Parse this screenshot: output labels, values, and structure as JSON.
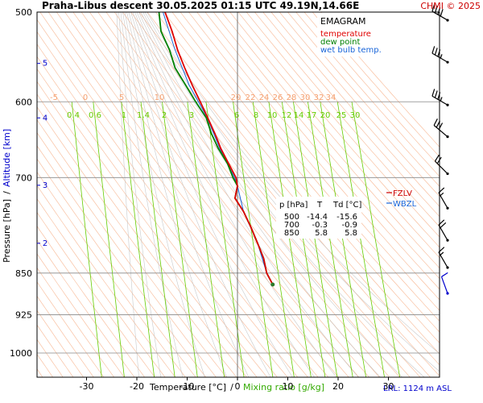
{
  "header": {
    "title": "Praha-Libus   descent   30.05.2025 01:15 UTC  49.19N,14.66E",
    "credit": "CHMI © 2025"
  },
  "legend": {
    "title": "EMAGRAM",
    "items": [
      {
        "label": "temperature",
        "color": "#e00000"
      },
      {
        "label": "dew point",
        "color": "#008000"
      },
      {
        "label": "wet bulb temp.",
        "color": "#1a66d9"
      }
    ],
    "level_labels": [
      {
        "label": "FZLV",
        "color": "#cc0000"
      },
      {
        "label": "WBZL",
        "color": "#1a66d9"
      }
    ]
  },
  "table": {
    "headers": [
      "p [hPa]",
      "T",
      "Td [°C]"
    ],
    "rows": [
      [
        "500",
        "-14.4",
        "-15.6"
      ],
      [
        "700",
        "-0.3",
        "-0.9"
      ],
      [
        "850",
        "5.8",
        "5.8"
      ]
    ]
  },
  "footer": {
    "xlabel_temp": "Temperature [°C]",
    "xlabel_sep": "/",
    "xlabel_mix": "Mixing ratio [g/kg]",
    "lrl": "LRL: 1124 m ASL"
  },
  "axis_titles": {
    "pressure": "Pressure [hPa]",
    "sep": "/",
    "altitude": "Altitude [km]"
  },
  "colors": {
    "temperature": "#e00000",
    "dewpoint": "#008000",
    "wetbulb": "#1a66d9",
    "mixing_ratio": "#66cc00",
    "dry_adiabat": "#f5a070",
    "moist_adiabat": "#bbbbbb",
    "isobar": "#888888",
    "wind_barb": "#000000",
    "wind_barb_low": "#0000cc",
    "altitude_label": "#0000cc"
  },
  "chart_data": {
    "type": "line",
    "title": "Praha-Libus   descent   30.05.2025 01:15 UTC  49.19N,14.66E",
    "xlabel": "Temperature [°C]",
    "ylabel": "Pressure [hPa]",
    "xlim": [
      -39,
      39
    ],
    "ylim": [
      1050,
      500
    ],
    "y_scale": "log",
    "x_ticks": [
      -30,
      -20,
      -10,
      0,
      10,
      20,
      30
    ],
    "y_ticks": [
      500,
      600,
      700,
      850,
      925,
      1000
    ],
    "altitude_ticks": [
      {
        "km": "5",
        "p": 555
      },
      {
        "km": "4",
        "p": 620
      },
      {
        "km": "3",
        "p": 711
      },
      {
        "km": "2",
        "p": 800
      }
    ],
    "mixing_ratio_labels": [
      "0.4",
      "0.6",
      "1",
      "1.4",
      "2",
      "3",
      "6",
      "8",
      "10",
      "12",
      "14",
      "17",
      "20",
      "25",
      "30"
    ],
    "theta_labels": [
      "-5",
      "0",
      "5",
      "10",
      "20",
      "22",
      "24",
      "26",
      "28",
      "30",
      "32",
      "34"
    ],
    "series": [
      {
        "name": "temperature",
        "points": [
          {
            "p": 500,
            "t": -14.4
          },
          {
            "p": 520,
            "t": -13.0
          },
          {
            "p": 540,
            "t": -11.9
          },
          {
            "p": 560,
            "t": -10.5
          },
          {
            "p": 580,
            "t": -9.0
          },
          {
            "p": 600,
            "t": -7.4
          },
          {
            "p": 620,
            "t": -5.9
          },
          {
            "p": 640,
            "t": -4.5
          },
          {
            "p": 660,
            "t": -3.3
          },
          {
            "p": 680,
            "t": -1.8
          },
          {
            "p": 700,
            "t": -0.3
          },
          {
            "p": 712,
            "t": 0.0
          },
          {
            "p": 730,
            "t": -0.5
          },
          {
            "p": 750,
            "t": 1.2
          },
          {
            "p": 775,
            "t": 2.7
          },
          {
            "p": 800,
            "t": 4.0
          },
          {
            "p": 825,
            "t": 5.2
          },
          {
            "p": 850,
            "t": 5.8
          },
          {
            "p": 870,
            "t": 7.0
          }
        ]
      },
      {
        "name": "dew point",
        "points": [
          {
            "p": 500,
            "t": -15.6
          },
          {
            "p": 520,
            "t": -15.2
          },
          {
            "p": 540,
            "t": -13.5
          },
          {
            "p": 560,
            "t": -12.4
          },
          {
            "p": 580,
            "t": -10.3
          },
          {
            "p": 600,
            "t": -8.3
          },
          {
            "p": 620,
            "t": -6.2
          },
          {
            "p": 640,
            "t": -5.2
          },
          {
            "p": 660,
            "t": -3.8
          },
          {
            "p": 680,
            "t": -2.0
          },
          {
            "p": 700,
            "t": -0.9
          },
          {
            "p": 712,
            "t": 0.0
          },
          {
            "p": 730,
            "t": -0.5
          },
          {
            "p": 750,
            "t": 1.2
          },
          {
            "p": 775,
            "t": 2.7
          },
          {
            "p": 800,
            "t": 4.0
          },
          {
            "p": 825,
            "t": 5.2
          },
          {
            "p": 850,
            "t": 5.8
          },
          {
            "p": 870,
            "t": 7.0
          }
        ]
      },
      {
        "name": "wet bulb temp.",
        "points": [
          {
            "p": 500,
            "t": -14.8
          },
          {
            "p": 540,
            "t": -12.4
          },
          {
            "p": 580,
            "t": -9.6
          },
          {
            "p": 620,
            "t": -6.0
          },
          {
            "p": 660,
            "t": -3.5
          },
          {
            "p": 700,
            "t": -0.6
          },
          {
            "p": 712,
            "t": 0.0
          },
          {
            "p": 750,
            "t": 1.2
          },
          {
            "p": 800,
            "t": 4.0
          },
          {
            "p": 850,
            "t": 5.8
          },
          {
            "p": 870,
            "t": 7.0
          }
        ]
      }
    ],
    "wind_profile": [
      {
        "p": 505,
        "dir": 300,
        "speed_kt": 40
      },
      {
        "p": 550,
        "dir": 300,
        "speed_kt": 35
      },
      {
        "p": 600,
        "dir": 300,
        "speed_kt": 35
      },
      {
        "p": 640,
        "dir": 310,
        "speed_kt": 30
      },
      {
        "p": 690,
        "dir": 315,
        "speed_kt": 20
      },
      {
        "p": 740,
        "dir": 330,
        "speed_kt": 15
      },
      {
        "p": 790,
        "dir": 330,
        "speed_kt": 20
      },
      {
        "p": 835,
        "dir": 330,
        "speed_kt": 15
      },
      {
        "p": 880,
        "dir": 340,
        "speed_kt": 10
      }
    ]
  }
}
